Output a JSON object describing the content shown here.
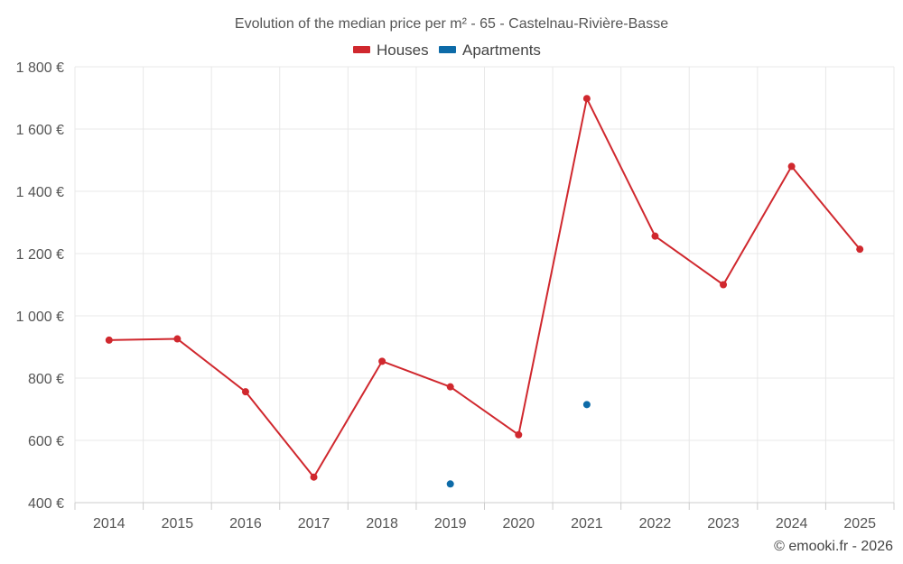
{
  "chart_data": {
    "type": "line",
    "title": "Evolution of the median price per m² - 65 - Castelnau-Rivière-Basse",
    "categories": [
      "2014",
      "2015",
      "2016",
      "2017",
      "2018",
      "2019",
      "2020",
      "2021",
      "2022",
      "2023",
      "2024",
      "2025"
    ],
    "series": [
      {
        "name": "Houses",
        "color": "#d0282e",
        "values": [
          922,
          926,
          756,
          482,
          854,
          772,
          618,
          1698,
          1256,
          1100,
          1480,
          1214
        ]
      },
      {
        "name": "Apartments",
        "color": "#0d6ba8",
        "values": [
          null,
          null,
          null,
          null,
          null,
          460,
          null,
          715,
          null,
          null,
          null,
          null
        ]
      }
    ],
    "ylim": [
      400,
      1800
    ],
    "yticks": [
      400,
      600,
      800,
      1000,
      1200,
      1400,
      1600,
      1800
    ],
    "ytick_labels": [
      "400 €",
      "600 €",
      "800 €",
      "1 000 €",
      "1 200 €",
      "1 400 €",
      "1 600 €",
      "1 800 €"
    ],
    "xlabel": "",
    "ylabel": "",
    "legend_position": "top-center",
    "grid": true
  },
  "credit": "© emooki.fr - 2026"
}
